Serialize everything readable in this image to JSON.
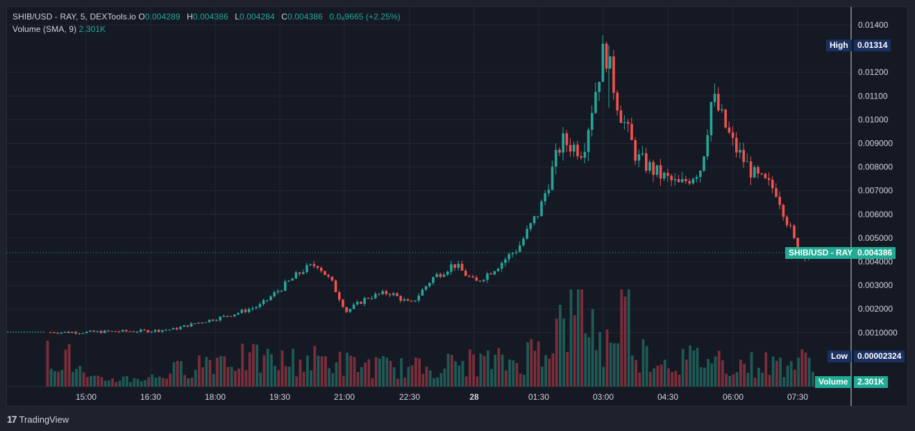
{
  "legend": {
    "title": "SHIB/USD - RAY, 5, DEXTools.io",
    "o_key": "O",
    "o_val": "0.004289",
    "h_key": "H",
    "h_val": "0.004386",
    "l_key": "L",
    "l_val": "0.004284",
    "c_key": "C",
    "c_val": "0.004386",
    "change": "0.0₈9665 (+2.25%)",
    "volume_label": "Volume (SMA, 9)",
    "volume_val": "2.301K"
  },
  "tags": {
    "high_label": "High",
    "high_value": "0.01314",
    "low_label": "Low",
    "low_value": "0.00002324",
    "symbol_label": "SHIB/USD - RAY",
    "symbol_value": "0.004386",
    "volume_label": "Volume",
    "volume_value": "2.301K"
  },
  "branding": {
    "logo_text": "TradingView",
    "logo_mark": "17"
  },
  "colors": {
    "up": "#26a69a",
    "down": "#ef5350",
    "up_vol": "#1f5a55",
    "down_vol": "#7a2e3a",
    "bg": "#151924",
    "grid": "#232834"
  },
  "chart_data": {
    "type": "candlestick",
    "title": "SHIB/USD - RAY, 5, DEXTools.io",
    "y_axis_ticks": [
      "0.01400",
      "0.01200",
      "0.01100",
      "0.01000",
      "0.009000",
      "0.008000",
      "0.007000",
      "0.006000",
      "0.005000",
      "0.004000",
      "0.003000",
      "0.002000",
      "0.0010000"
    ],
    "x_axis_ticks": [
      "15:00",
      "16:30",
      "18:00",
      "19:30",
      "21:00",
      "22:30",
      "28",
      "01:30",
      "03:00",
      "04:30",
      "06:00",
      "07:30"
    ],
    "ylim": [
      0,
      0.015
    ],
    "grid": true,
    "series": [
      {
        "name": "SHIB/USD - RAY",
        "price_points": [
          [
            "15:00",
            0.00102
          ],
          [
            "15:30",
            0.00105
          ],
          [
            "16:00",
            0.00106
          ],
          [
            "16:30",
            0.00108
          ],
          [
            "17:00",
            0.00115
          ],
          [
            "17:30",
            0.0014
          ],
          [
            "18:00",
            0.0016
          ],
          [
            "18:30",
            0.00185
          ],
          [
            "19:00",
            0.00215
          ],
          [
            "19:30",
            0.0029
          ],
          [
            "20:00",
            0.00365
          ],
          [
            "20:20",
            0.0039
          ],
          [
            "20:40",
            0.0031
          ],
          [
            "21:00",
            0.0019
          ],
          [
            "21:30",
            0.0025
          ],
          [
            "22:00",
            0.0027
          ],
          [
            "22:30",
            0.0022
          ],
          [
            "23:00",
            0.0033
          ],
          [
            "23:30",
            0.0039
          ],
          [
            "00:00",
            0.0031
          ],
          [
            "00:30",
            0.0038
          ],
          [
            "01:00",
            0.0046
          ],
          [
            "01:30",
            0.0062
          ],
          [
            "02:00",
            0.0091
          ],
          [
            "02:30",
            0.0087
          ],
          [
            "03:00",
            0.0131
          ],
          [
            "03:20",
            0.0105
          ],
          [
            "03:45",
            0.0084
          ],
          [
            "04:15",
            0.0077
          ],
          [
            "04:45",
            0.0072
          ],
          [
            "05:15",
            0.008
          ],
          [
            "05:30",
            0.011
          ],
          [
            "06:00",
            0.0089
          ],
          [
            "06:30",
            0.0076
          ],
          [
            "07:00",
            0.007
          ],
          [
            "07:30",
            0.00439
          ]
        ]
      },
      {
        "name": "Volume (SMA, 9)",
        "volume_points": [
          [
            "14:30",
            1.4
          ],
          [
            "15:00",
            0.3
          ],
          [
            "16:30",
            0.4
          ],
          [
            "18:00",
            1.3
          ],
          [
            "19:30",
            1.1
          ],
          [
            "20:30",
            1.2
          ],
          [
            "21:00",
            1.0
          ],
          [
            "22:30",
            0.8
          ],
          [
            "00:00",
            1.1
          ],
          [
            "01:00",
            1.1
          ],
          [
            "01:45",
            2.2
          ],
          [
            "02:30",
            3.7
          ],
          [
            "03:00",
            1.6
          ],
          [
            "03:30",
            3.9
          ],
          [
            "03:45",
            1.6
          ],
          [
            "04:30",
            1.1
          ],
          [
            "05:30",
            1.3
          ],
          [
            "06:00",
            1.0
          ],
          [
            "07:00",
            1.0
          ],
          [
            "07:30",
            1.1
          ]
        ]
      }
    ],
    "annotations": [
      "High 0.01314",
      "Low 0.00002324",
      "SHIB/USD - RAY 0.004386",
      "Volume 2.301K"
    ]
  }
}
